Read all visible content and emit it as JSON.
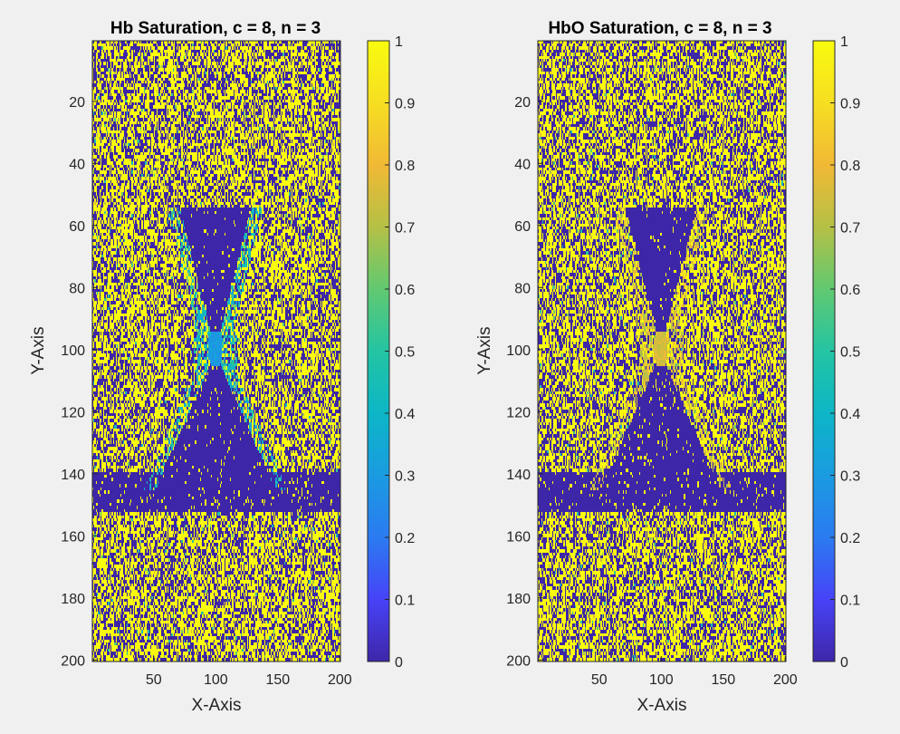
{
  "chart_data": [
    {
      "type": "heatmap",
      "title": "Hb Saturation, c = 8, n = 3",
      "xlabel": "X-Axis",
      "ylabel": "Y-Axis",
      "xlim": [
        0.5,
        200.5
      ],
      "ylim": [
        0.5,
        200.5
      ],
      "y_reversed": true,
      "xticks": [
        50,
        100,
        150,
        200
      ],
      "yticks": [
        20,
        40,
        60,
        80,
        100,
        120,
        140,
        160,
        180,
        200
      ],
      "grid_size": [
        200,
        200
      ],
      "colormap": "parula",
      "colorbar": {
        "range": [
          0,
          1
        ],
        "ticks": [
          0,
          0.1,
          0.2,
          0.3,
          0.4,
          0.5,
          0.6,
          0.7,
          0.8,
          0.9,
          1
        ]
      },
      "pattern": {
        "background": "random binary values (0 or 1) with fill probability ~0.55",
        "dense_zero_region": "X-shaped band of value 0 centered at (100,100), upper wedge y 55-95, lower wedge y 105-145, horizontal band y 140-152",
        "center_value": 0.3,
        "halo_value_range": [
          0.3,
          0.55
        ]
      }
    },
    {
      "type": "heatmap",
      "title": "HbO Saturation, c = 8, n = 3",
      "xlabel": "X-Axis",
      "ylabel": "Y-Axis",
      "xlim": [
        0.5,
        200.5
      ],
      "ylim": [
        0.5,
        200.5
      ],
      "y_reversed": true,
      "xticks": [
        50,
        100,
        150,
        200
      ],
      "yticks": [
        20,
        40,
        60,
        80,
        100,
        120,
        140,
        160,
        180,
        200
      ],
      "grid_size": [
        200,
        200
      ],
      "colormap": "parula",
      "colorbar": {
        "range": [
          0,
          1
        ],
        "ticks": [
          0,
          0.1,
          0.2,
          0.3,
          0.4,
          0.5,
          0.6,
          0.7,
          0.8,
          0.9,
          1
        ]
      },
      "pattern": {
        "background": "random binary values (0 or 1) with fill probability ~0.55",
        "dense_zero_region": "X-shaped band of value 0 centered at (100,100), upper wedge y 55-95, lower wedge y 105-145, horizontal band y 140-152",
        "center_value": 0.75,
        "halo_value_range": [
          0.65,
          0.85
        ]
      }
    }
  ],
  "colors": {
    "figure_background": "#f0f0f0",
    "axes_edge": "#262626",
    "parula_low": "#3e26a8",
    "parula_high": "#f9fb0e"
  }
}
